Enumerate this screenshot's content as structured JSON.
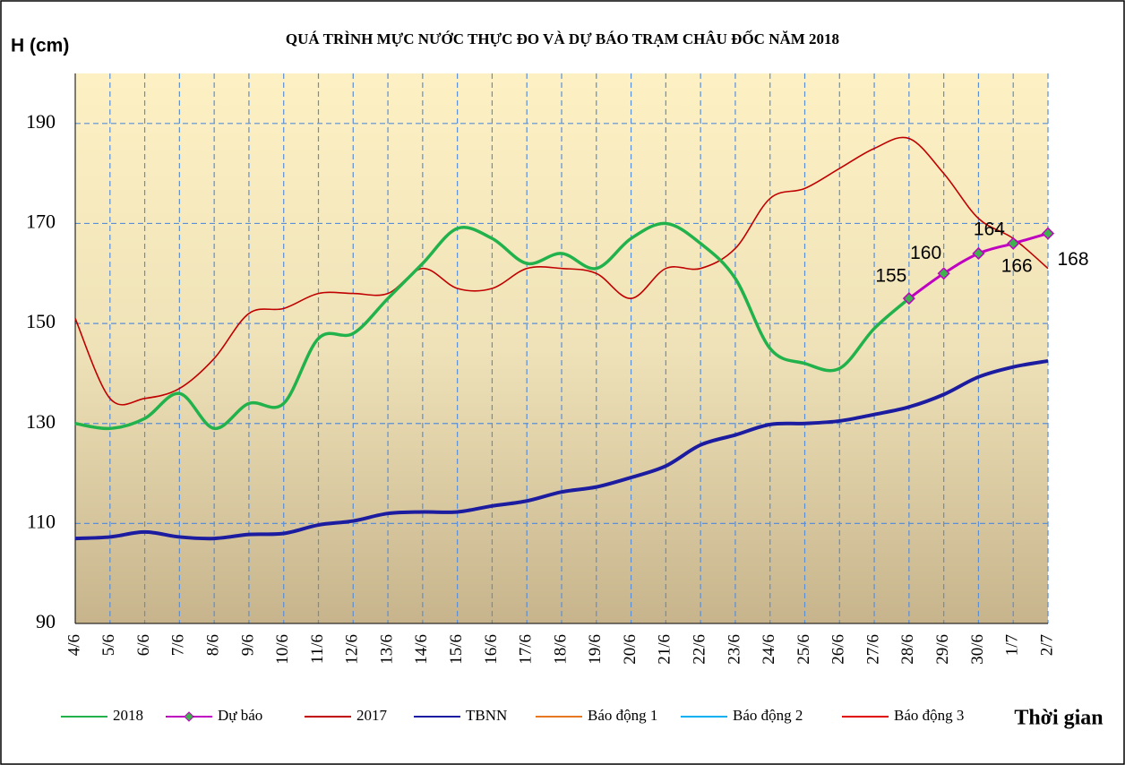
{
  "chart_data": {
    "type": "line",
    "title": "QUÁ TRÌNH MỰC NƯỚC THỰC ĐO VÀ DỰ BÁO TRẠM CHÂU ĐỐC NĂM 2018",
    "y_label": "H (cm)",
    "x_label": "Thời gian",
    "categories": [
      "4/6",
      "5/6",
      "6/6",
      "7/6",
      "8/6",
      "9/6",
      "10/6",
      "11/6",
      "12/6",
      "13/6",
      "14/6",
      "15/6",
      "16/6",
      "17/6",
      "18/6",
      "19/6",
      "20/6",
      "21/6",
      "22/6",
      "23/6",
      "24/6",
      "25/6",
      "26/6",
      "27/6",
      "28/6",
      "29/6",
      "30/6",
      "1/7",
      "2/7"
    ],
    "ylim": [
      90,
      200
    ],
    "yticks": [
      90,
      110,
      130,
      150,
      170,
      190
    ],
    "grid": true,
    "series": [
      {
        "name": "2018",
        "color": "#22b24c",
        "values": [
          130,
          129,
          131,
          136,
          129,
          134,
          134,
          147,
          148,
          155,
          162,
          169,
          167,
          162,
          164,
          161,
          167,
          170,
          166,
          159,
          145,
          142,
          141,
          149,
          155,
          null,
          null,
          null,
          null
        ]
      },
      {
        "name": "Dự báo",
        "color": "#c000c0",
        "marker_color": "#3cb44b",
        "data_labels": true,
        "values": [
          null,
          null,
          null,
          null,
          null,
          null,
          null,
          null,
          null,
          null,
          null,
          null,
          null,
          null,
          null,
          null,
          null,
          null,
          null,
          null,
          null,
          null,
          null,
          null,
          155,
          160,
          164,
          166,
          168
        ]
      },
      {
        "name": "2017",
        "color": "#c00000",
        "values": [
          151,
          135,
          135,
          137,
          143,
          152,
          153,
          156,
          156,
          156,
          161,
          157,
          157,
          161,
          161,
          160,
          155,
          161,
          161,
          165,
          175,
          177,
          181,
          185,
          187,
          180,
          171,
          167,
          161
        ]
      },
      {
        "name": "TBNN",
        "color": "#1c1ca0",
        "values": [
          107,
          107.3,
          108.3,
          107.3,
          107,
          107.8,
          108,
          109.7,
          110.5,
          112,
          112.3,
          112.3,
          113.5,
          114.5,
          116.3,
          117.3,
          119.2,
          121.5,
          125.7,
          127.7,
          129.8,
          130,
          130.5,
          131.8,
          133.3,
          135.8,
          139.3,
          141.3,
          142.5
        ]
      },
      {
        "name": "Báo động 1",
        "color": "#e87722",
        "values": [
          null,
          null,
          null,
          null,
          null,
          null,
          null,
          null,
          null,
          null,
          null,
          null,
          null,
          null,
          null,
          null,
          null,
          null,
          null,
          null,
          null,
          null,
          null,
          null,
          null,
          null,
          null,
          null,
          null
        ]
      },
      {
        "name": "Báo động 2",
        "color": "#00b0f0",
        "values": [
          null,
          null,
          null,
          null,
          null,
          null,
          null,
          null,
          null,
          null,
          null,
          null,
          null,
          null,
          null,
          null,
          null,
          null,
          null,
          null,
          null,
          null,
          null,
          null,
          null,
          null,
          null,
          null,
          null
        ]
      },
      {
        "name": "Báo động 3",
        "color": "#e00000",
        "values": [
          null,
          null,
          null,
          null,
          null,
          null,
          null,
          null,
          null,
          null,
          null,
          null,
          null,
          null,
          null,
          null,
          null,
          null,
          null,
          null,
          null,
          null,
          null,
          null,
          null,
          null,
          null,
          null,
          null
        ]
      }
    ]
  }
}
